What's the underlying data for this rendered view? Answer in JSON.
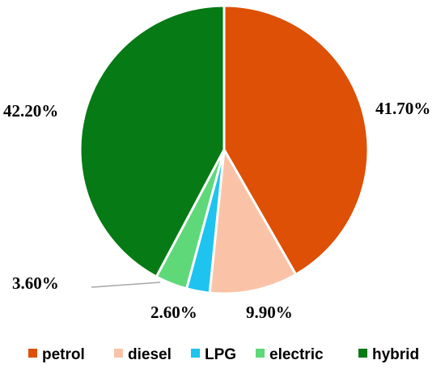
{
  "chart_data": {
    "type": "pie",
    "categories": [
      "petrol",
      "diesel",
      "LPG",
      "electric",
      "hybrid"
    ],
    "values": [
      41.7,
      9.9,
      2.6,
      3.6,
      42.2
    ],
    "labels": [
      "41.70%",
      "9.90%",
      "2.60%",
      "3.60%",
      "42.20%"
    ],
    "colors": [
      "#DD5005",
      "#FAC3A8",
      "#1EC3EF",
      "#5FD87A",
      "#067A14"
    ],
    "legend": {
      "position": "bottom",
      "entries": [
        "petrol",
        "diesel",
        "LPG",
        "electric",
        "hybrid"
      ]
    }
  }
}
